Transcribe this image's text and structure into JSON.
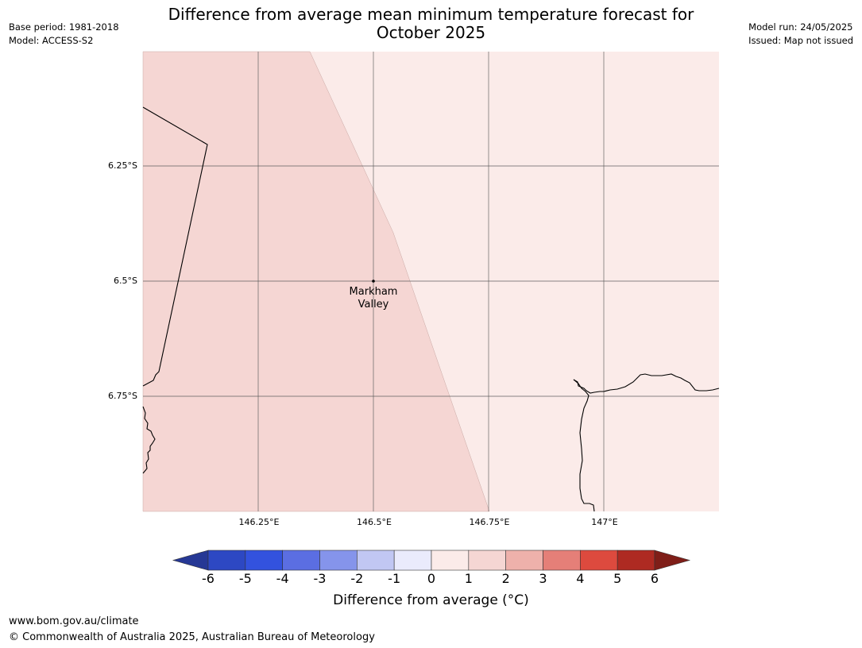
{
  "title": "Difference from average mean minimum temperature forecast for October 2025",
  "meta_left": [
    "Base period: 1981-2018",
    "Model: ACCESS-S2"
  ],
  "meta_right": [
    "Model run: 24/05/2025",
    "Issued: Map not issued"
  ],
  "map": {
    "lat_labels": [
      "6.25°S",
      "6.5°S",
      "6.75°S"
    ],
    "lon_labels": [
      "146.25°E",
      "146.5°E",
      "146.75°E",
      "147°E"
    ],
    "place": {
      "name_line1": "Markham",
      "name_line2": "Valley"
    },
    "colors": {
      "anomaly_0_to_1": "#fbebe9",
      "anomaly_1_to_2": "#f5d6d3",
      "gridline": "#555555",
      "coastline": "#000000"
    }
  },
  "colorbar": {
    "ticks": [
      "-6",
      "-5",
      "-4",
      "-3",
      "-2",
      "-1",
      "0",
      "1",
      "2",
      "3",
      "4",
      "5",
      "6"
    ],
    "colors": [
      "#263895",
      "#2d48c3",
      "#3352de",
      "#5b6ee2",
      "#8594eb",
      "#c1c7f3",
      "#eaebfc",
      "#fbebe9",
      "#f5d6d3",
      "#eeb1ab",
      "#e57f78",
      "#dd4a3e",
      "#ae2a22",
      "#7f1e18"
    ],
    "label": "Difference from average (°C)"
  },
  "footer": {
    "url": "www.bom.gov.au/climate",
    "copyright": "© Commonwealth of Australia 2025, Australian Bureau of Meteorology"
  }
}
